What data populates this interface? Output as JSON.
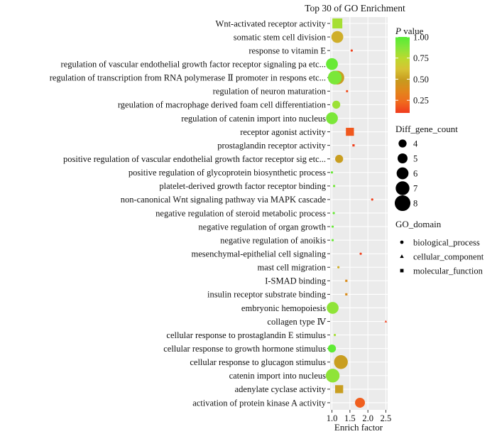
{
  "chart_data": {
    "type": "scatter",
    "title": "Top 30 of GO Enrichment",
    "xlabel": "Enrich factor",
    "ylabel": "",
    "xlim": [
      0.95,
      2.55
    ],
    "xticks": [
      "1.0",
      "1.5",
      "2.0",
      "2.5"
    ],
    "xtick_values": [
      1.0,
      1.5,
      2.0,
      2.5
    ],
    "grid": true,
    "legend_position": "right",
    "color_legend": {
      "title_italic": "P",
      "title_rest": " value",
      "ticks": [
        "1.00",
        "0.75",
        "0.50",
        "0.25"
      ],
      "tick_values": [
        1.0,
        0.75,
        0.5,
        0.25
      ],
      "range": [
        0.1,
        1.0
      ],
      "colors": [
        "#f03a1e",
        "#f06a1e",
        "#e2861c",
        "#c79a1e",
        "#d7c234",
        "#bdd92e",
        "#86e63a",
        "#55ec34"
      ]
    },
    "size_legend": {
      "title": "Diff_gene_count",
      "values": [
        4,
        5,
        6,
        7,
        8
      ],
      "labels": [
        "4",
        "5",
        "6",
        "7",
        "8"
      ]
    },
    "shape_legend": {
      "title": "GO_domain",
      "items": [
        {
          "key": "biological_process",
          "label": "biological_process",
          "shape": "circle"
        },
        {
          "key": "cellular_component",
          "label": "cellular_component",
          "shape": "triangle"
        },
        {
          "key": "molecular_function",
          "label": "molecular_function",
          "shape": "square"
        }
      ]
    },
    "points": [
      {
        "term": "Wnt-activated receptor activity",
        "x": 1.15,
        "p": 0.8,
        "count": 5,
        "domain": "molecular_function"
      },
      {
        "term": "somatic stem cell division",
        "x": 1.15,
        "p": 0.55,
        "count": 6,
        "domain": "biological_process"
      },
      {
        "term": "response to vitamin E",
        "x": 1.55,
        "p": 0.12,
        "count": 1,
        "domain": "biological_process"
      },
      {
        "term": "regulation of vascular endothelial growth factor receptor signaling pa etc...",
        "x": 1.0,
        "p": 0.95,
        "count": 6,
        "domain": "biological_process"
      },
      {
        "term": "regulation of transcription from RNA polymerase Ⅱ promoter in respons etc...",
        "x": 1.15,
        "p": 0.5,
        "count": 7,
        "domain": "biological_process",
        "overlay": {
          "x": 1.08,
          "p": 0.9,
          "count": 7
        }
      },
      {
        "term": "regulation of neuron maturation",
        "x": 1.42,
        "p": 0.15,
        "count": 1,
        "domain": "biological_process"
      },
      {
        "term": "rgeulation of macrophage derived foam cell differentiation",
        "x": 1.12,
        "p": 0.82,
        "count": 4,
        "domain": "biological_process"
      },
      {
        "term": "regulation of catenin import into nucleus",
        "x": 1.0,
        "p": 0.9,
        "count": 6,
        "domain": "biological_process"
      },
      {
        "term": "receptor agonist activity",
        "x": 1.5,
        "p": 0.18,
        "count": 4,
        "domain": "molecular_function"
      },
      {
        "term": "prostaglandin receptor activity",
        "x": 1.6,
        "p": 0.12,
        "count": 1,
        "domain": "molecular_function"
      },
      {
        "term": "positive regulation of vascular endothelial growth factor receptor sig etc...",
        "x": 1.2,
        "p": 0.5,
        "count": 4,
        "domain": "biological_process"
      },
      {
        "term": "positive regulation of glycoprotein biosynthetic process",
        "x": 1.0,
        "p": 0.95,
        "count": 1,
        "domain": "biological_process"
      },
      {
        "term": "platelet-derived growth factor receptor binding",
        "x": 1.06,
        "p": 0.92,
        "count": 1,
        "domain": "biological_process"
      },
      {
        "term": "non-canonical Wnt signaling pathway via MAPK cascade",
        "x": 2.12,
        "p": 0.12,
        "count": 1,
        "domain": "biological_process"
      },
      {
        "term": "negative regulation of steroid metabolic process",
        "x": 1.05,
        "p": 0.95,
        "count": 1,
        "domain": "biological_process"
      },
      {
        "term": "negative regulation of organ growth",
        "x": 1.02,
        "p": 0.95,
        "count": 1,
        "domain": "biological_process"
      },
      {
        "term": "negative regulation of anoikis",
        "x": 1.02,
        "p": 0.95,
        "count": 1,
        "domain": "biological_process"
      },
      {
        "term": "mesenchymal-epithelial cell signaling",
        "x": 1.8,
        "p": 0.12,
        "count": 1,
        "domain": "biological_process"
      },
      {
        "term": "mast cell migration",
        "x": 1.18,
        "p": 0.55,
        "count": 1,
        "domain": "biological_process"
      },
      {
        "term": "I-SMAD binding",
        "x": 1.4,
        "p": 0.4,
        "count": 1,
        "domain": "molecular_function"
      },
      {
        "term": "insulin receptor substrate binding",
        "x": 1.4,
        "p": 0.4,
        "count": 1,
        "domain": "molecular_function"
      },
      {
        "term": "embryonic hemopoiesis",
        "x": 1.02,
        "p": 0.85,
        "count": 6,
        "domain": "biological_process"
      },
      {
        "term": "collagen type Ⅳ",
        "x": 2.5,
        "p": 0.12,
        "count": 1,
        "domain": "cellular_component"
      },
      {
        "term": "cellular response to prostaglandin E stimulus",
        "x": 1.08,
        "p": 0.8,
        "count": 1,
        "domain": "biological_process"
      },
      {
        "term": "cellular response to growth hormone stimulus",
        "x": 1.0,
        "p": 0.97,
        "count": 4,
        "domain": "biological_process"
      },
      {
        "term": "cellular response to glucagon stimulus",
        "x": 1.25,
        "p": 0.5,
        "count": 7,
        "domain": "biological_process"
      },
      {
        "term": "catenin import into nucleus",
        "x": 1.02,
        "p": 0.85,
        "count": 7,
        "domain": "biological_process"
      },
      {
        "term": "adenylate cyclase activity",
        "x": 1.2,
        "p": 0.5,
        "count": 4,
        "domain": "molecular_function"
      },
      {
        "term": "activation of protein kinase A activity",
        "x": 1.78,
        "p": 0.2,
        "count": 5,
        "domain": "biological_process"
      }
    ]
  }
}
